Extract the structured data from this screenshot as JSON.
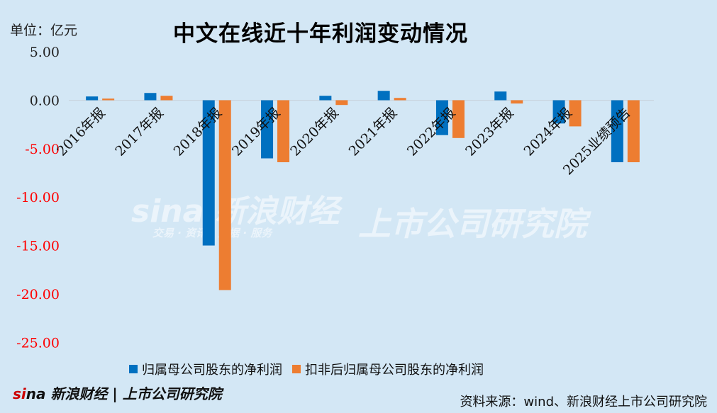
{
  "unit_label": "单位：亿元",
  "title": "中文在线近十年利润变动情况",
  "source": "资料来源：wind、新浪财经上市公司研究院",
  "watermark": {
    "brand": "sina 新浪财经",
    "sub": "交易 · 资讯 · 数据 · 服务",
    "institute": "上市公司研究院"
  },
  "colors": {
    "series1": "#0070c0",
    "series2": "#ed7d31",
    "negative_tick": "#ff0000",
    "background": "#d3e7f5"
  },
  "chart_data": {
    "type": "bar",
    "title": "中文在线近十年利润变动情况",
    "ylabel": "单位：亿元",
    "ylim": [
      -25,
      5
    ],
    "yticks": [
      "5.00",
      "0.00",
      "-5.00",
      "-10.00",
      "-15.00",
      "-20.00",
      "-25.00"
    ],
    "ytick_values": [
      5,
      0,
      -5,
      -10,
      -15,
      -20,
      -25
    ],
    "grid": false,
    "legend": "bottom",
    "categories": [
      "2016年报",
      "2017年报",
      "2018年报",
      "2019年报",
      "2020年报",
      "2021年报",
      "2022年报",
      "2023年报",
      "2024年报",
      "2025业绩预告"
    ],
    "series": [
      {
        "name": "归属母公司股东的净利润",
        "values": [
          0.39,
          0.75,
          -15.0,
          -6.0,
          0.46,
          0.97,
          -3.6,
          0.9,
          -2.4,
          -6.4
        ]
      },
      {
        "name": "扣非后归属母公司股东的净利润",
        "values": [
          0.17,
          0.46,
          -19.6,
          -6.4,
          -0.49,
          0.24,
          -3.9,
          -0.34,
          -2.7,
          -6.4
        ]
      }
    ]
  }
}
